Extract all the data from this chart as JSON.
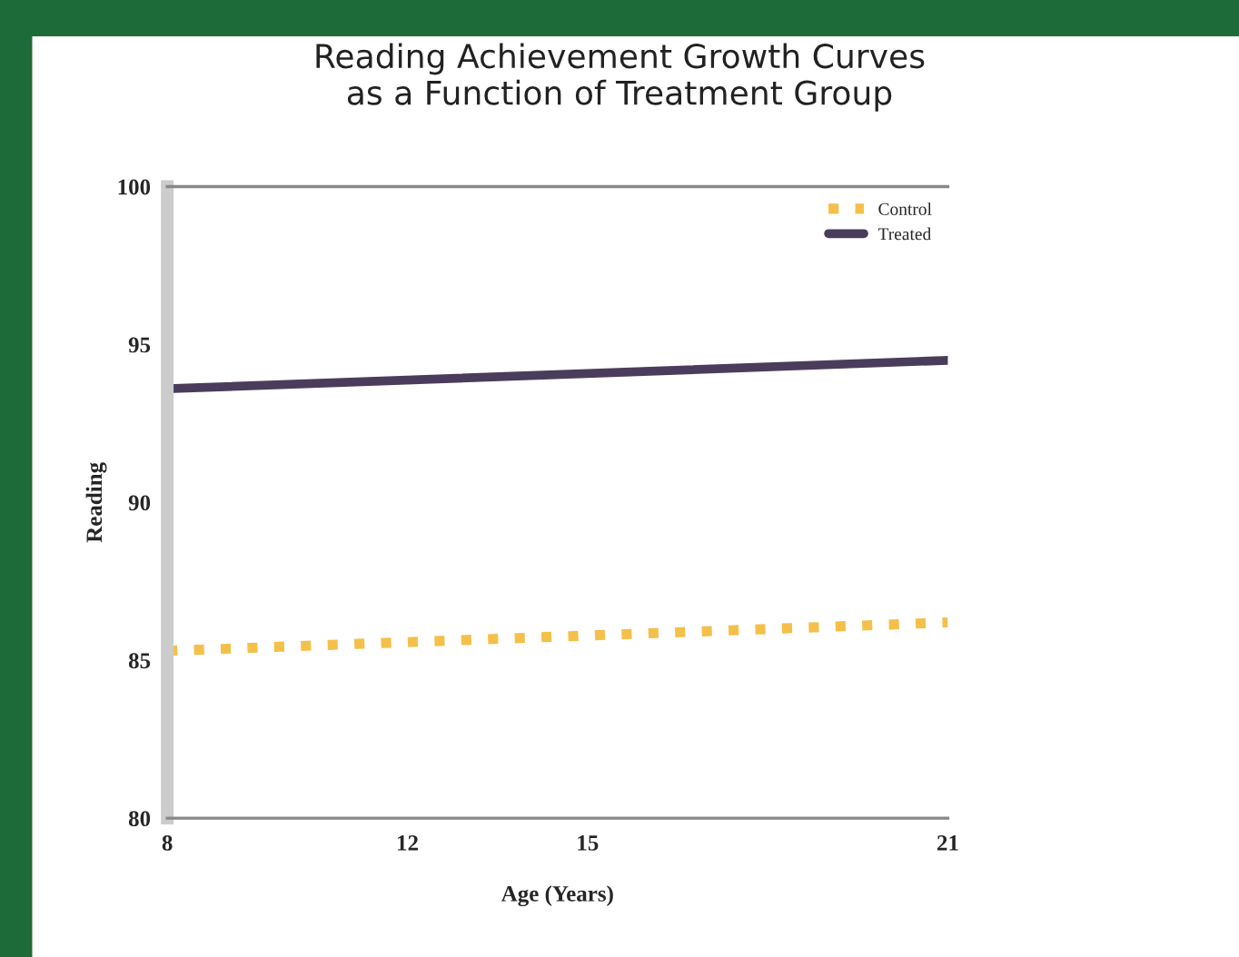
{
  "chart_data": {
    "type": "line",
    "title": "Reading Achievement Growth Curves\nas a Function of Treatment Group",
    "xlabel": "Age (Years)",
    "ylabel": "Reading",
    "x": [
      8,
      21
    ],
    "series": [
      {
        "name": "Control",
        "color": "#f5c04a",
        "values": [
          85.3,
          86.2
        ],
        "line_style": "dotted"
      },
      {
        "name": "Treated",
        "color": "#4a3d5c",
        "values": [
          93.6,
          94.5
        ],
        "line_style": "solid"
      }
    ],
    "xlim": [
      8,
      21
    ],
    "xticks": [
      8,
      12,
      15,
      21
    ],
    "ylim": [
      80,
      100
    ],
    "yticks": [
      80,
      85,
      90,
      95,
      100
    ],
    "grid": false,
    "legend": "top right",
    "marker": "none"
  }
}
